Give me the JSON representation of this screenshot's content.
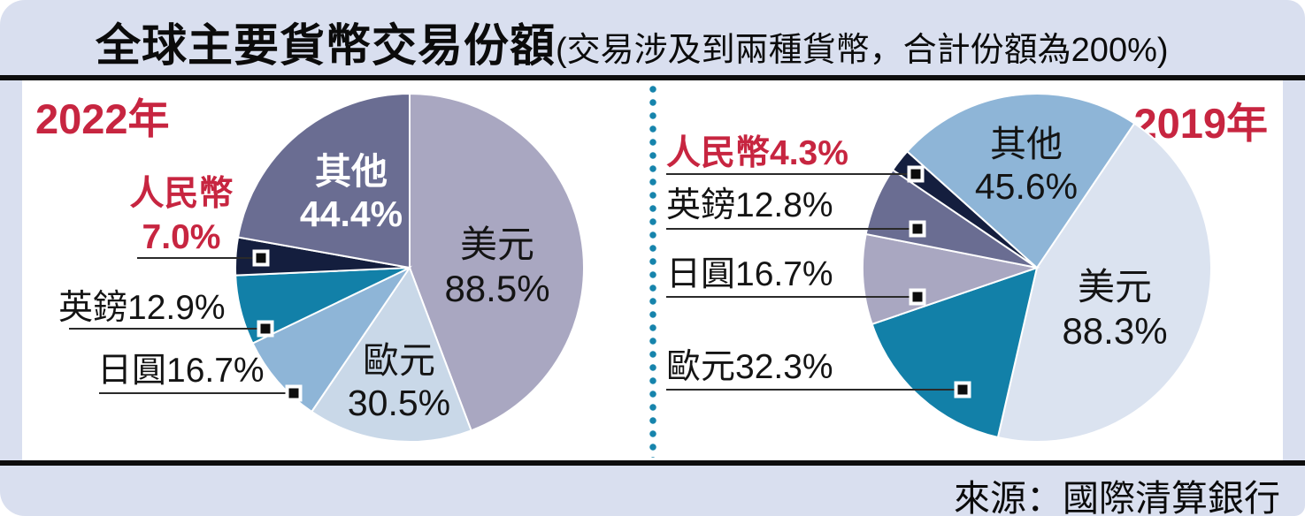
{
  "header": {
    "title": "全球主要貨幣交易份額",
    "subtitle": "(交易涉及到兩種貨幣，合計份額為200%)"
  },
  "footer": {
    "source": "來源：國際清算銀行"
  },
  "colors": {
    "frame_background": "#d9dfef",
    "accent_red": "#c72540",
    "rule_black": "#0d0d0d",
    "divider_dot_teal": "#1684ac"
  },
  "chart_data": [
    {
      "type": "pie",
      "title": "2022年",
      "note": "交易涉及到兩種貨幣，合計份額為200%",
      "rotation_deg": 0,
      "legend_position": "none",
      "slices": [
        {
          "en": "usd",
          "name": "美元",
          "pct": "88.5%",
          "value": 88.5,
          "color": "#a9a7c1"
        },
        {
          "en": "eur",
          "name": "歐元",
          "pct": "30.5%",
          "value": 30.5,
          "color": "#c9d8e8"
        },
        {
          "en": "jpy",
          "name": "日圓",
          "pct": "16.7%",
          "value": 16.7,
          "color": "#8eb5d7"
        },
        {
          "en": "gbp",
          "name": "英鎊",
          "pct": "12.9%",
          "value": 12.9,
          "color": "#1280a8"
        },
        {
          "en": "cny",
          "name": "人民幣",
          "pct": "7.0%",
          "value": 7.0,
          "color": "#141e3e"
        },
        {
          "en": "others",
          "name": "其他",
          "pct": "44.4%",
          "value": 44.4,
          "color": "#6a6d92"
        }
      ]
    },
    {
      "type": "pie",
      "title": "2019年",
      "note": "交易涉及到兩種貨幣，合計份額為200%",
      "rotation_deg": 34,
      "legend_position": "none",
      "slices": [
        {
          "en": "usd",
          "name": "美元",
          "pct": "88.3%",
          "value": 88.3,
          "color": "#dbe3f0"
        },
        {
          "en": "eur",
          "name": "歐元",
          "pct": "32.3%",
          "value": 32.3,
          "color": "#1280a8"
        },
        {
          "en": "jpy",
          "name": "日圓",
          "pct": "16.7%",
          "value": 16.7,
          "color": "#a9a7c1"
        },
        {
          "en": "gbp",
          "name": "英鎊",
          "pct": "12.8%",
          "value": 12.8,
          "color": "#6a6d92"
        },
        {
          "en": "cny",
          "name": "人民幣",
          "pct": "4.3%",
          "value": 4.3,
          "color": "#141e3e"
        },
        {
          "en": "others",
          "name": "其他",
          "pct": "45.6%",
          "value": 45.6,
          "color": "#8eb5d7"
        }
      ]
    }
  ]
}
